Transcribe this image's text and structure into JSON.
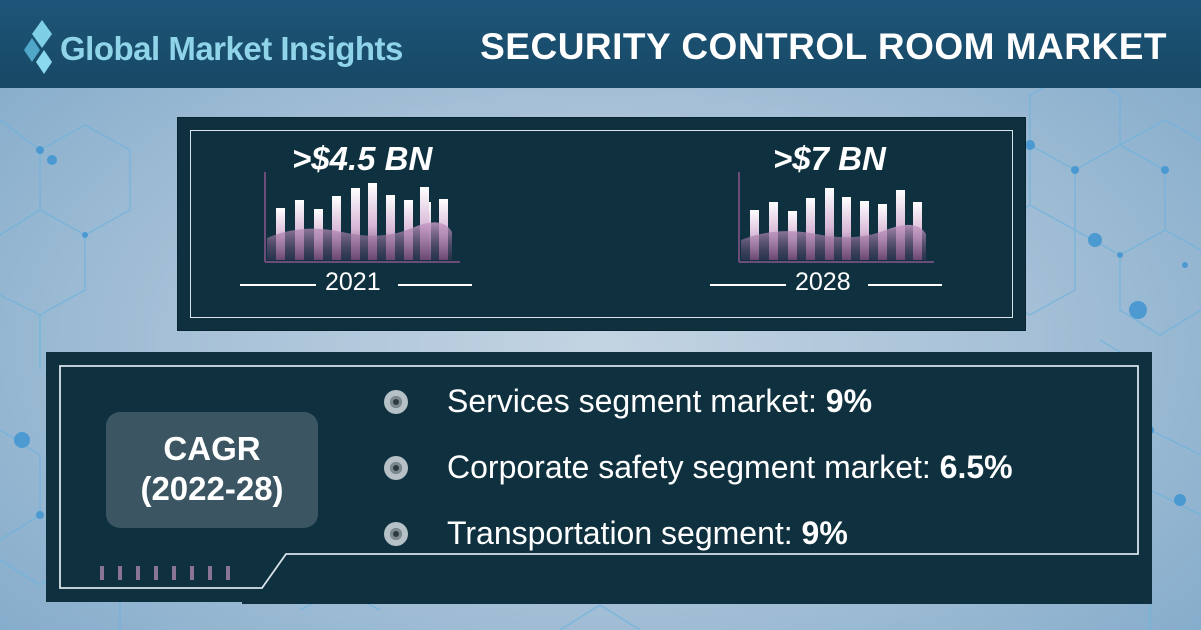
{
  "brand": {
    "name": "Global Market Insights"
  },
  "header": {
    "title": "SECURITY CONTROL ROOM MARKET"
  },
  "stats": [
    {
      "value": ">$4.5 BN",
      "year": "2021"
    },
    {
      "value": ">$7 BN",
      "year": "2028"
    }
  ],
  "cagr": {
    "label_line1": "CAGR",
    "label_line2": "(2022-28)",
    "segments": [
      {
        "label": "Services segment market: ",
        "value": "9%"
      },
      {
        "label": "Corporate safety segment market: ",
        "value": "6.5%"
      },
      {
        "label": "Transportation segment: ",
        "value": "9%"
      }
    ]
  },
  "colors": {
    "header_bg": "#174864",
    "panel_bg": "#0f313f",
    "logo_text": "#8fd4e8",
    "cagr_box": "#3b5563"
  },
  "icons": [
    "logo-diamond-icon",
    "bar-chart-icon",
    "bullet-icon"
  ]
}
